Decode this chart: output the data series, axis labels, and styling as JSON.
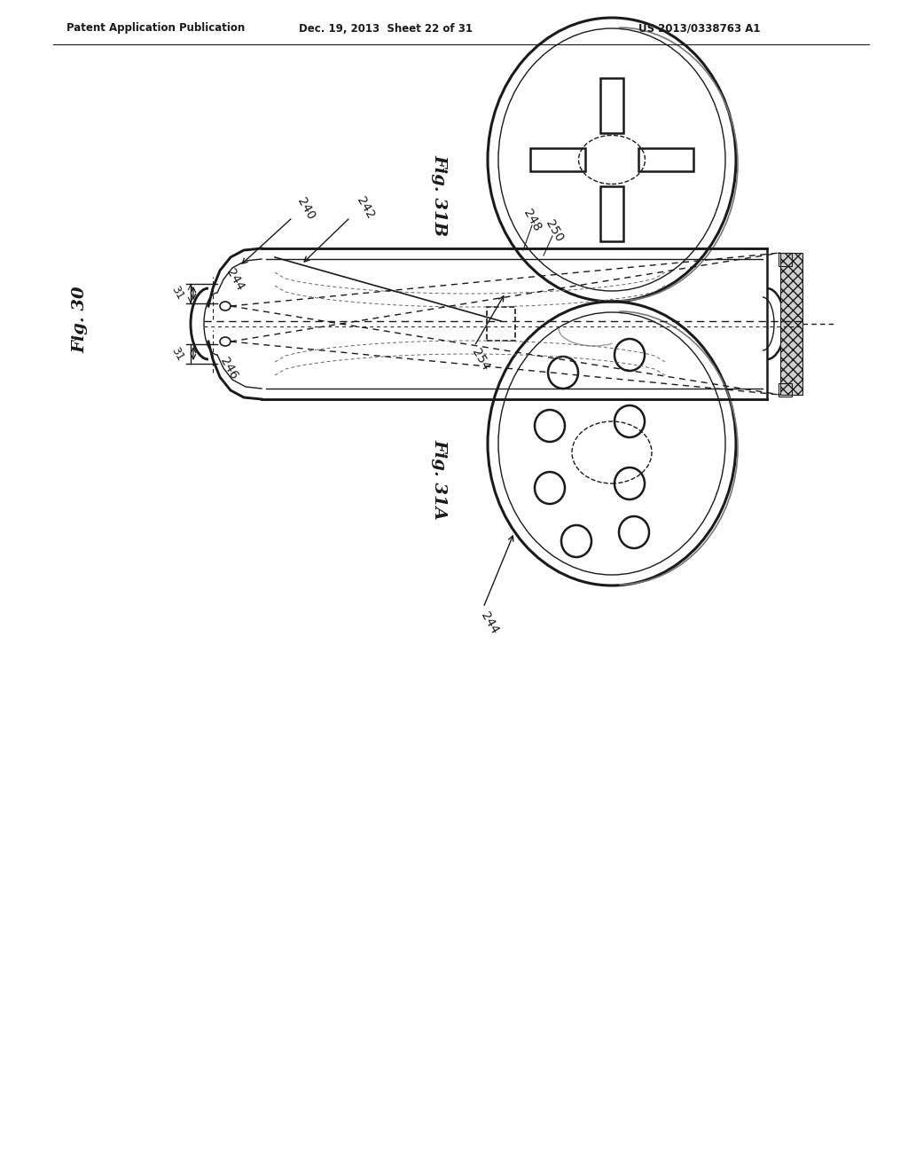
{
  "bg_color": "#ffffff",
  "header_left": "Patent Application Publication",
  "header_mid": "Dec. 19, 2013  Sheet 22 of 31",
  "header_right": "US 2013/0338763 A1",
  "fig30_label": "Fig. 30",
  "fig31A_label": "Fig. 31A",
  "fig31B_label": "Fig. 31B",
  "line_color": "#1a1a1a",
  "lw_main": 1.8,
  "lw_thin": 1.0,
  "lw_thick": 2.2
}
